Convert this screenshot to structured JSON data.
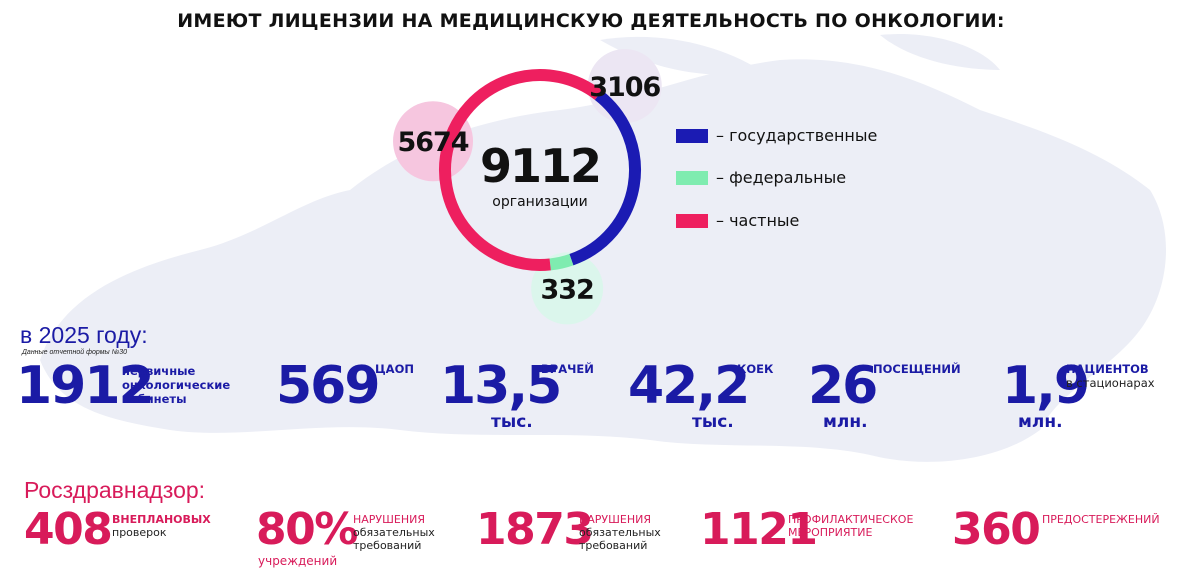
{
  "title": "ИМЕЮТ ЛИЦЕНЗИИ НА МЕДИЦИНСКУЮ  ДЕЯТЕЛЬНОСТЬ ПО ОНКОЛОГИИ:",
  "colors": {
    "state": "#1b1bb3",
    "federal": "#7fecb0",
    "private": "#ee1f5f",
    "stats_blue": "#1b1ba5",
    "stats_pink": "#d81b5a"
  },
  "chart_data": {
    "type": "pie",
    "center_value": "9112",
    "center_label": "организации",
    "slices": [
      {
        "name": "государственные",
        "value": 3106,
        "label": "3106",
        "legend": "– государственные",
        "color": "#1b1bb3",
        "bubble_color": "#ece6f3"
      },
      {
        "name": "федеральные",
        "value": 332,
        "label": "332",
        "legend": "– федеральные",
        "color": "#7fecb0",
        "bubble_color": "#dbf6ec"
      },
      {
        "name": "частные",
        "value": 5674,
        "label": "5674",
        "legend": "– частные",
        "color": "#ee1f5f",
        "bubble_color": "#f6c6df"
      }
    ]
  },
  "year_section": {
    "title": "в 2025 году:",
    "note": "Данные отчетной формы №30",
    "stats": [
      {
        "value": "1912",
        "label_lines": [
          "первичные",
          "онкологические",
          "кабинеты"
        ],
        "unit": ""
      },
      {
        "value": "569",
        "label_lines": [
          "ЦАОП"
        ],
        "unit": ""
      },
      {
        "value": "13,5",
        "label_lines": [
          "ВРАЧЕЙ"
        ],
        "unit": "тыс."
      },
      {
        "value": "42,2",
        "label_lines": [
          "КОЕК"
        ],
        "unit": "тыс."
      },
      {
        "value": "26",
        "label_lines": [
          "ПОСЕЩЕНИЙ"
        ],
        "unit": "млн."
      },
      {
        "value": "1,9",
        "label_lines": [
          "ПАЦИЕНТОВ",
          "в стационарах"
        ],
        "unit": "млн."
      }
    ]
  },
  "rzn_section": {
    "title": "Росздравнадзор:",
    "stats": [
      {
        "value": "408",
        "label_lines": [
          "ВНЕПЛАНОВЫХ",
          "проверок"
        ],
        "unit": ""
      },
      {
        "value": "80%",
        "label_lines": [
          "НАРУШЕНИЯ",
          "обязательных",
          "требований"
        ],
        "unit": "учреждений"
      },
      {
        "value": "1873",
        "label_lines": [
          "НАРУШЕНИЯ",
          "обязательных",
          "требований"
        ],
        "unit": ""
      },
      {
        "value": "1121",
        "label_lines": [
          "ПРОФИЛАКТИЧЕСКОЕ",
          "МЕРОПРИЯТИЕ"
        ],
        "unit": ""
      },
      {
        "value": "360",
        "label_lines": [
          "ПРЕДОСТЕРЕЖЕНИЙ"
        ],
        "unit": ""
      }
    ]
  }
}
